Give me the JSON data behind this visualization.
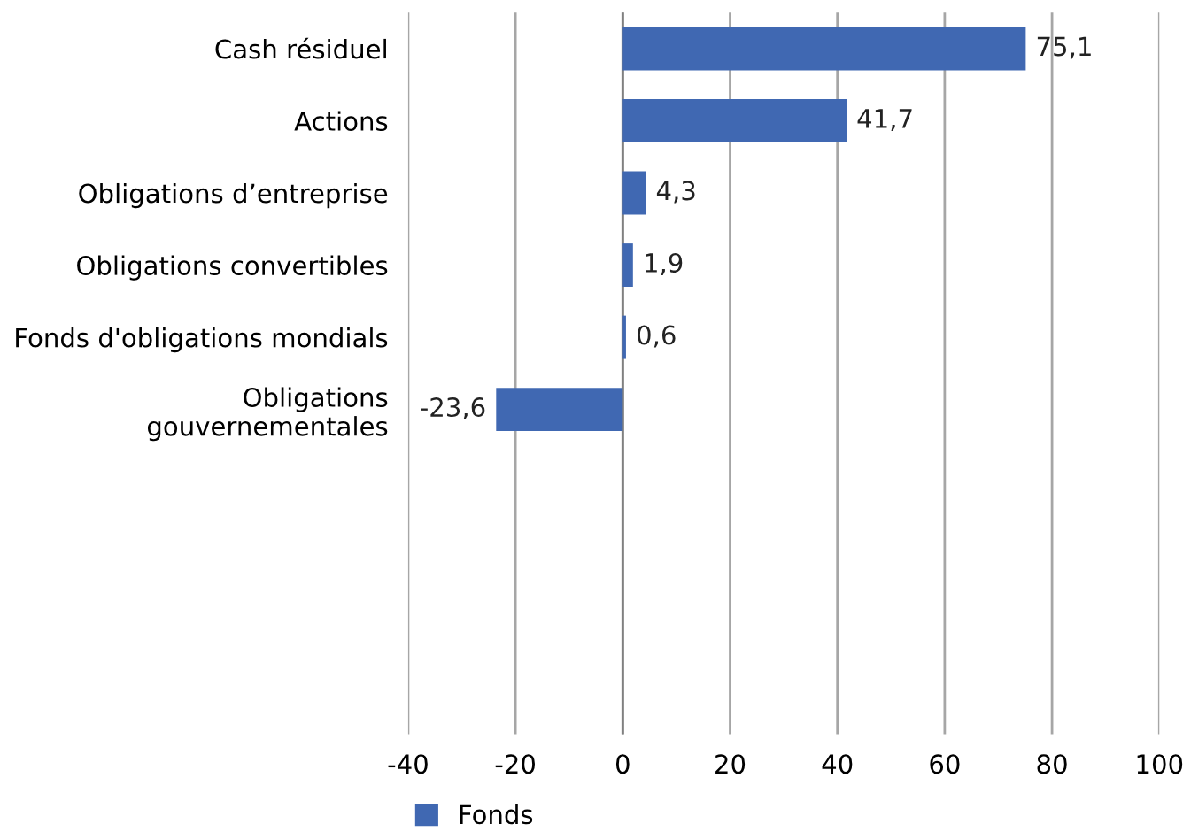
{
  "chart_data": {
    "type": "bar",
    "orientation": "horizontal",
    "categories": [
      "Cash résiduel",
      "Actions",
      "Obligations d’entreprise",
      "Obligations convertibles",
      "Fonds d'obligations mondials",
      "Obligations\ngouvernementales",
      null,
      null,
      null,
      null
    ],
    "series": [
      {
        "name": "Fonds",
        "color": "#4068b2",
        "values": [
          75.1,
          41.7,
          4.3,
          1.9,
          0.6,
          -23.6,
          null,
          null,
          null,
          null
        ],
        "value_labels": [
          "75,1",
          "41,7",
          "4,3",
          "1,9",
          "0,6",
          "-23,6",
          null,
          null,
          null,
          null
        ]
      }
    ],
    "xlim": [
      -40,
      100
    ],
    "xticks": [
      {
        "value": -40,
        "label": "-40"
      },
      {
        "value": -20,
        "label": "-20"
      },
      0,
      20,
      40,
      60,
      80,
      100
    ],
    "grid": "x",
    "legend": "bottom"
  }
}
